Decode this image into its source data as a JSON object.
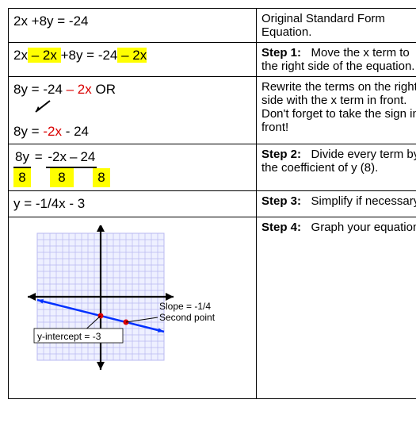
{
  "rows": [
    {
      "left_html": "2x +8y = -24",
      "right_title": "",
      "right_text": "Original Standard Form Equation."
    },
    {
      "right_title": "Step 1:",
      "right_text": "Move the x term to the right side of the equation."
    },
    {
      "right_title": "",
      "right_text": "Rewrite the terms on the right side with the x term in front.  Don't forget to take the sign in front!"
    },
    {
      "right_title": "Step 2:",
      "right_text": "Divide every term by the coefficient of y (8)."
    },
    {
      "left_html": "y =  -1/4x - 3",
      "right_title": "Step 3:",
      "right_text": "Simplify if necessary."
    },
    {
      "right_title": "Step 4:",
      "right_text": "Graph your equation."
    }
  ],
  "eq_row1": {
    "a": "2x",
    "minus2x": " – 2x ",
    "b": "+8y = -24",
    "minus2x_r": " – 2x"
  },
  "eq_row2": {
    "line1a": "8y = -24 ",
    "line1b": "– 2x",
    "or": "   OR",
    "line2a": "8y = ",
    "line2b": "-2x",
    "line2c": " - 24"
  },
  "eq_row3": {
    "num1": "8y",
    "eq": " = ",
    "num2": "-2x",
    "minus": " – ",
    "num3": "24",
    "den1": "8",
    "den2": "8",
    "den3": "8"
  },
  "graph": {
    "grid_extent": 10,
    "grid_color": "#b8b8f0",
    "grid_bg": "#eef0ff",
    "axis_color": "#000000",
    "line_color": "#0030ff",
    "point_color": "#d90000",
    "y_intercept": [
      0,
      -3
    ],
    "second_point": [
      4,
      -4
    ],
    "label_slope": "Slope = -1/4",
    "label_second": "Second point",
    "label_yint": "y-intercept = -3",
    "label_fontsize": 12
  }
}
